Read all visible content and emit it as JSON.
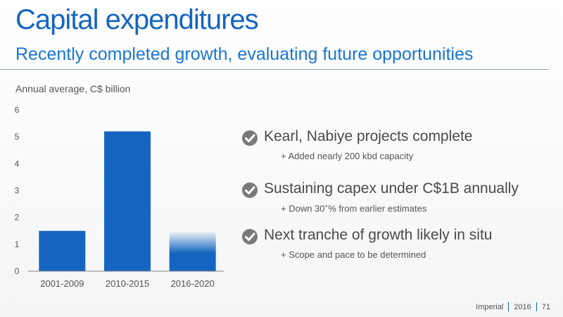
{
  "slide": {
    "title": "Capital expenditures",
    "subtitle": "Recently completed growth, evaluating future opportunities"
  },
  "chart_data": {
    "type": "bar",
    "ylabel": "Annual average, C$ billion",
    "categories": [
      "2001-2009",
      "2010-2015",
      "2016-2020"
    ],
    "values": [
      1.5,
      5.2,
      1.5
    ],
    "ylim": [
      0,
      6
    ],
    "yticks": [
      "0",
      "1",
      "2",
      "3",
      "4",
      "5",
      "6"
    ],
    "bar_color": "#1565c0",
    "grid": false
  },
  "bullets": [
    {
      "heading": "Kearl, Nabiye projects complete",
      "sub": "+ Added nearly 200 kbd capacity"
    },
    {
      "heading": "Sustaining capex under C$1B annually",
      "sub_pre": "+ Down 30",
      "sub_sup": "+",
      "sub_post": "% from earlier estimates"
    },
    {
      "heading": "Next tranche of growth likely in situ",
      "sub": "+ Scope and pace to be determined"
    }
  ],
  "footer": {
    "company": "Imperial",
    "year": "2016",
    "page": "71"
  },
  "icons": {
    "bullet": "check-circle-icon"
  }
}
